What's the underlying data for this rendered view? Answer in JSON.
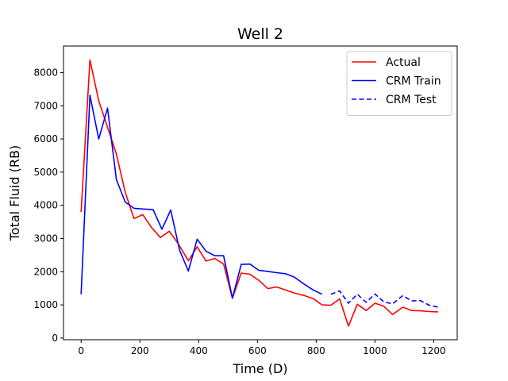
{
  "chart_data": {
    "type": "line",
    "title": "Well 2",
    "xlabel": "Time (D)",
    "ylabel": "Total Fluid (RB)",
    "xlim": [
      -60,
      1280
    ],
    "ylim": [
      -50,
      8800
    ],
    "x_ticks": [
      0,
      200,
      400,
      600,
      800,
      1000,
      1200
    ],
    "y_ticks": [
      0,
      1000,
      2000,
      3000,
      4000,
      5000,
      6000,
      7000,
      8000
    ],
    "grid": false,
    "legend_position": "top-right",
    "series": [
      {
        "name": "Actual",
        "color": "#ff0000",
        "style": "solid",
        "x": [
          0,
          30,
          60,
          90,
          120,
          150,
          180,
          210,
          240,
          270,
          300,
          330,
          365,
          395,
          425,
          455,
          485,
          515,
          545,
          575,
          605,
          635,
          665,
          695,
          725,
          760,
          790,
          820,
          850,
          880,
          910,
          940,
          970,
          1000,
          1030,
          1060,
          1095,
          1125,
          1155,
          1185,
          1215
        ],
        "y": [
          3800,
          8380,
          7150,
          6350,
          5550,
          4400,
          3600,
          3720,
          3330,
          3030,
          3220,
          2850,
          2330,
          2750,
          2320,
          2400,
          2230,
          1200,
          1960,
          1920,
          1740,
          1490,
          1540,
          1450,
          1360,
          1280,
          1190,
          1000,
          990,
          1180,
          360,
          1020,
          830,
          1050,
          960,
          710,
          930,
          830,
          820,
          800,
          790
        ]
      },
      {
        "name": "CRM Train",
        "color": "#0000ff",
        "style": "solid",
        "x": [
          0,
          30,
          60,
          90,
          120,
          150,
          180,
          210,
          245,
          275,
          305,
          335,
          365,
          395,
          425,
          455,
          485,
          515,
          545,
          575,
          605,
          635,
          665,
          695,
          725,
          760,
          790,
          820
        ],
        "y": [
          1320,
          7320,
          6000,
          6930,
          4780,
          4100,
          3910,
          3890,
          3870,
          3280,
          3860,
          2650,
          2020,
          2980,
          2620,
          2480,
          2480,
          1200,
          2220,
          2230,
          2040,
          2010,
          1970,
          1940,
          1840,
          1620,
          1450,
          1320
        ]
      },
      {
        "name": "CRM Test",
        "color": "#0000ff",
        "style": "dashed",
        "x": [
          850,
          880,
          910,
          940,
          970,
          1000,
          1030,
          1060,
          1095,
          1125,
          1155,
          1185,
          1215
        ],
        "y": [
          1320,
          1420,
          1050,
          1320,
          1080,
          1330,
          1090,
          1030,
          1280,
          1120,
          1130,
          990,
          930
        ]
      }
    ]
  }
}
